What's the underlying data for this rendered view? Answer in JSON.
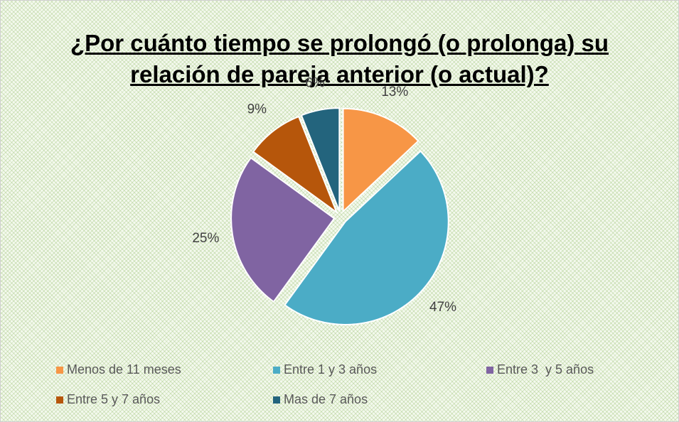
{
  "chart_data": {
    "type": "pie",
    "title": "¿Por cuánto tiempo se prolongó (o prolonga) su relación de pareja anterior (o actual)?",
    "categories": [
      "Menos de 11 meses",
      "Entre 1 y 3 años",
      "Entre 3  y 5 años",
      "Entre 5 y 7 años",
      "Mas de 7 años"
    ],
    "values": [
      13,
      47,
      25,
      9,
      6
    ],
    "value_labels": [
      "13%",
      "47%",
      "25%",
      "9%",
      "6%"
    ],
    "colors": [
      "#f79646",
      "#4bacc6",
      "#8064a2",
      "#b6560b",
      "#23647d"
    ],
    "legend": "bottom"
  }
}
